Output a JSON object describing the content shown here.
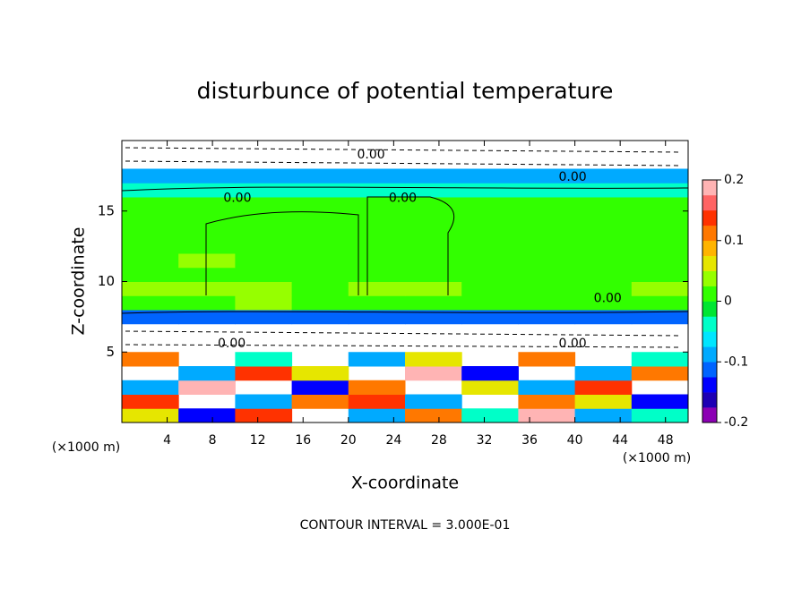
{
  "chart_data": {
    "type": "heatmap",
    "title": "disturbunce of potential temperature",
    "x_label": "X-coordinate",
    "y_label": "Z-coordinate",
    "x_unit": "(×1000 m)",
    "y_unit": "(×1000 m)",
    "annotation": "CONTOUR INTERVAL = 3.000E-01",
    "xlim": [
      0,
      50
    ],
    "ylim": [
      0,
      20
    ],
    "xticks": [
      4,
      8,
      12,
      16,
      20,
      24,
      28,
      32,
      36,
      40,
      44,
      48
    ],
    "yticks": [
      5,
      10,
      15
    ],
    "clim": [
      -0.2,
      0.2
    ],
    "cticks": [
      -0.2,
      -0.1,
      0,
      0.1,
      0.2
    ],
    "colors": [
      "#8c00b4",
      "#1e00b4",
      "#0000ff",
      "#0064ff",
      "#00aaff",
      "#00e6ff",
      "#00ffc8",
      "#00e632",
      "#32ff00",
      "#96ff00",
      "#e6e600",
      "#ffb400",
      "#ff7800",
      "#ff3200",
      "#ff6464",
      "#ffb4b4"
    ],
    "x": [
      2.5,
      7.5,
      12.5,
      17.5,
      22.5,
      27.5,
      32.5,
      37.5,
      42.5,
      47.5
    ],
    "y": [
      0.5,
      1.5,
      2.5,
      3.5,
      4.5,
      5.5,
      6.5,
      7.5,
      8.5,
      9.5,
      10.5,
      11.5,
      12.5,
      13.5,
      14.5,
      15.5,
      16.5,
      17.5,
      18.5,
      19.5
    ],
    "values": [
      [
        0.05,
        -0.15,
        0.15,
        null,
        -0.1,
        0.1,
        -0.05,
        0.2,
        -0.1,
        -0.05
      ],
      [
        0.15,
        null,
        -0.1,
        0.1,
        0.15,
        -0.1,
        null,
        0.1,
        0.05,
        -0.15
      ],
      [
        -0.1,
        0.2,
        null,
        -0.15,
        0.1,
        null,
        0.05,
        -0.1,
        0.15,
        null
      ],
      [
        null,
        -0.1,
        0.15,
        0.05,
        null,
        0.2,
        -0.15,
        null,
        -0.1,
        0.1
      ],
      [
        0.1,
        null,
        -0.05,
        null,
        -0.1,
        0.05,
        null,
        0.1,
        null,
        -0.05
      ],
      [
        null,
        null,
        null,
        null,
        null,
        null,
        null,
        null,
        null,
        null
      ],
      [
        null,
        null,
        null,
        null,
        null,
        null,
        null,
        null,
        null,
        null
      ],
      [
        -0.12,
        -0.12,
        -0.12,
        -0.12,
        -0.12,
        -0.12,
        -0.12,
        -0.12,
        -0.12,
        -0.12
      ],
      [
        0.02,
        0.02,
        0.03,
        0.02,
        0.02,
        0.02,
        0.02,
        0.02,
        0.02,
        0.02
      ],
      [
        0.04,
        0.03,
        0.03,
        0.02,
        0.03,
        0.03,
        0.02,
        0.02,
        0.02,
        0.03
      ],
      [
        0.02,
        0.02,
        0.02,
        0.02,
        0.02,
        0.02,
        0.02,
        0.02,
        0.02,
        0.02
      ],
      [
        0.02,
        0.03,
        0.02,
        0.02,
        0.02,
        0.02,
        0.02,
        0.02,
        0.02,
        0.02
      ],
      [
        0.02,
        0.02,
        0.02,
        0.02,
        0.02,
        0.02,
        0.02,
        0.02,
        0.02,
        0.02
      ],
      [
        0.02,
        0.02,
        0.02,
        0.02,
        0.02,
        0.02,
        0.02,
        0.02,
        0.02,
        0.02
      ],
      [
        0.02,
        0.02,
        0.02,
        0.02,
        0.02,
        0.02,
        0.02,
        0.02,
        0.02,
        0.02
      ],
      [
        0.02,
        0.02,
        0.02,
        0.02,
        0.02,
        0.02,
        0.02,
        0.02,
        0.02,
        0.02
      ],
      [
        -0.04,
        -0.04,
        -0.04,
        -0.04,
        -0.04,
        -0.04,
        -0.04,
        -0.04,
        -0.04,
        -0.04
      ],
      [
        -0.08,
        -0.08,
        -0.08,
        -0.08,
        -0.08,
        -0.08,
        -0.08,
        -0.08,
        -0.08,
        -0.08
      ],
      [
        null,
        null,
        null,
        null,
        null,
        null,
        null,
        null,
        null,
        null
      ],
      [
        null,
        null,
        null,
        null,
        null,
        null,
        null,
        null,
        null,
        null
      ]
    ],
    "contour_labels": [
      {
        "x": 10.2,
        "y": 15.9,
        "label": "0.00"
      },
      {
        "x": 24.8,
        "y": 15.9,
        "label": "0.00"
      },
      {
        "x": 39.8,
        "y": 17.4,
        "label": "0.00"
      },
      {
        "x": 22,
        "y": 19,
        "label": "0.00"
      },
      {
        "x": 42.9,
        "y": 8.8,
        "label": "0.00"
      },
      {
        "x": 9.7,
        "y": 5.6,
        "label": "0.00"
      },
      {
        "x": 39.8,
        "y": 5.6,
        "label": "0.00"
      }
    ]
  }
}
